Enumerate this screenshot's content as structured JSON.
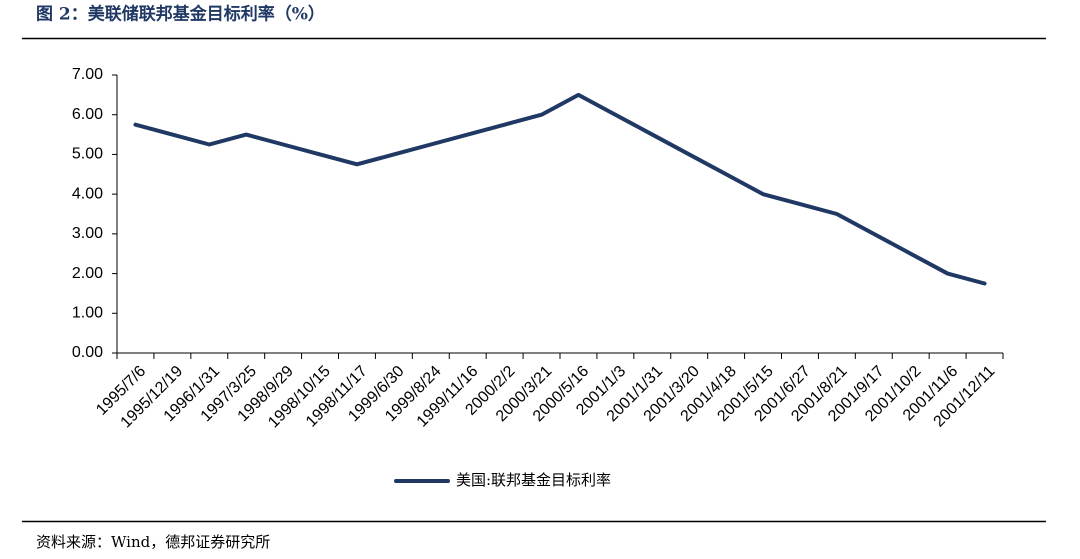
{
  "chart_data": {
    "type": "line",
    "title": "图 2：美联储联邦基金目标利率（%）",
    "source": "资料来源：Wind，德邦证券研究所",
    "categories": [
      "1995/7/6",
      "1995/12/19",
      "1996/1/31",
      "1997/3/25",
      "1998/9/29",
      "1998/10/15",
      "1998/11/17",
      "1999/6/30",
      "1999/8/24",
      "1999/11/16",
      "2000/2/2",
      "2000/3/21",
      "2000/5/16",
      "2001/1/3",
      "2001/1/31",
      "2001/3/20",
      "2001/4/18",
      "2001/5/15",
      "2001/6/27",
      "2001/8/21",
      "2001/9/17",
      "2001/10/2",
      "2001/11/6",
      "2001/12/11"
    ],
    "series": [
      {
        "name": "美国:联邦基金目标利率",
        "color": "#203864",
        "values": [
          5.75,
          5.5,
          5.25,
          5.5,
          5.25,
          5.0,
          4.75,
          5.0,
          5.25,
          5.5,
          5.75,
          6.0,
          6.5,
          6.0,
          5.5,
          5.0,
          4.5,
          4.0,
          3.75,
          3.5,
          3.0,
          2.5,
          2.0,
          1.75
        ]
      }
    ],
    "ylim": [
      0,
      7
    ],
    "yticks": [
      {
        "value": 0,
        "label": "0.00"
      },
      {
        "value": 1,
        "label": "1.00"
      },
      {
        "value": 2,
        "label": "2.00"
      },
      {
        "value": 3,
        "label": "3.00"
      },
      {
        "value": 4,
        "label": "4.00"
      },
      {
        "value": 5,
        "label": "5.00"
      },
      {
        "value": 6,
        "label": "6.00"
      },
      {
        "value": 7,
        "label": "7.00"
      }
    ],
    "grid": false,
    "legend": "bottom"
  }
}
